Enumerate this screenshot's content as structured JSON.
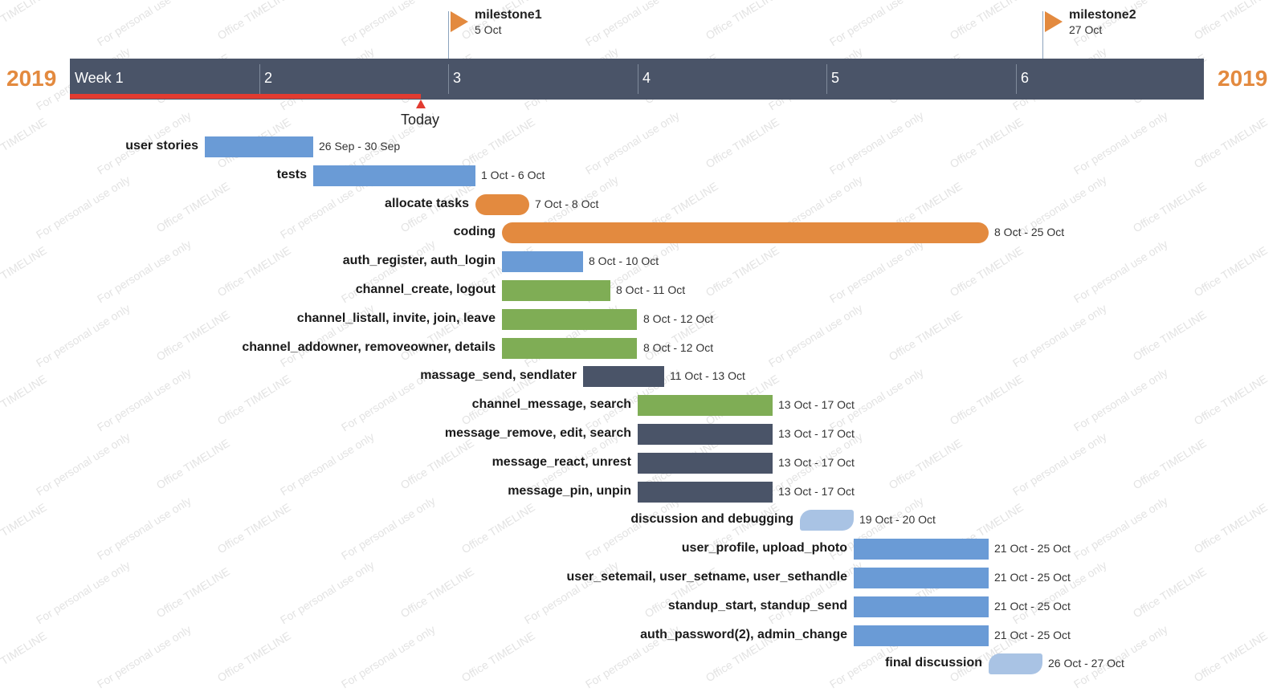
{
  "chart_data": {
    "type": "gantt",
    "year_left": "2019",
    "year_right": "2019",
    "weeks": [
      "Week 1",
      "2",
      "3",
      "4",
      "5",
      "6"
    ],
    "today_label": "Today",
    "today_date": "4 Oct",
    "timeline_start": "2019-09-21",
    "milestones": [
      {
        "name": "milestone1",
        "date_label": "5 Oct",
        "date": "2019-10-05"
      },
      {
        "name": "milestone2",
        "date_label": "27 Oct",
        "date": "2019-10-27"
      }
    ],
    "tasks": [
      {
        "name": "user stories",
        "start": "2019-09-26",
        "end": "2019-09-30",
        "dates": "26 Sep - 30 Sep",
        "color": "#6a9bd6",
        "shape": "rect"
      },
      {
        "name": "tests",
        "start": "2019-09-30",
        "end": "2019-10-06",
        "dates": "1 Oct - 6 Oct",
        "color": "#6a9bd6",
        "shape": "rect"
      },
      {
        "name": "allocate tasks",
        "start": "2019-10-06",
        "end": "2019-10-08",
        "dates": "7 Oct - 8 Oct",
        "color": "#e38a3f",
        "shape": "pill"
      },
      {
        "name": "coding",
        "start": "2019-10-07",
        "end": "2019-10-25",
        "dates": "8 Oct - 25 Oct",
        "color": "#e38a3f",
        "shape": "pill"
      },
      {
        "name": "auth_register, auth_login",
        "start": "2019-10-07",
        "end": "2019-10-10",
        "dates": "8 Oct - 10 Oct",
        "color": "#6a9bd6",
        "shape": "rect"
      },
      {
        "name": "channel_create, logout",
        "start": "2019-10-07",
        "end": "2019-10-11",
        "dates": "8 Oct - 11 Oct",
        "color": "#7fad55",
        "shape": "rect"
      },
      {
        "name": "channel_listall, invite, join, leave",
        "start": "2019-10-07",
        "end": "2019-10-12",
        "dates": "8 Oct - 12 Oct",
        "color": "#7fad55",
        "shape": "rect"
      },
      {
        "name": "channel_addowner, removeowner, details",
        "start": "2019-10-07",
        "end": "2019-10-12",
        "dates": "8 Oct - 12 Oct",
        "color": "#7fad55",
        "shape": "rect"
      },
      {
        "name": "massage_send, sendlater",
        "start": "2019-10-10",
        "end": "2019-10-13",
        "dates": "11 Oct - 13 Oct",
        "color": "#4a5468",
        "shape": "rect"
      },
      {
        "name": "channel_message, search",
        "start": "2019-10-12",
        "end": "2019-10-17",
        "dates": "13 Oct - 17 Oct",
        "color": "#7fad55",
        "shape": "rect"
      },
      {
        "name": "message_remove, edit, search",
        "start": "2019-10-12",
        "end": "2019-10-17",
        "dates": "13 Oct - 17 Oct",
        "color": "#4a5468",
        "shape": "rect"
      },
      {
        "name": "message_react, unrest",
        "start": "2019-10-12",
        "end": "2019-10-17",
        "dates": "13 Oct - 17 Oct",
        "color": "#4a5468",
        "shape": "rect"
      },
      {
        "name": "message_pin, unpin",
        "start": "2019-10-12",
        "end": "2019-10-17",
        "dates": "13 Oct - 17 Oct",
        "color": "#4a5468",
        "shape": "rect"
      },
      {
        "name": "discussion and debugging",
        "start": "2019-10-18",
        "end": "2019-10-20",
        "dates": "19 Oct - 20 Oct",
        "color": "#a9c3e4",
        "shape": "tab"
      },
      {
        "name": "user_profile, upload_photo",
        "start": "2019-10-20",
        "end": "2019-10-25",
        "dates": "21 Oct - 25 Oct",
        "color": "#6a9bd6",
        "shape": "rect"
      },
      {
        "name": "user_setemail, user_setname, user_sethandle",
        "start": "2019-10-20",
        "end": "2019-10-25",
        "dates": "21 Oct - 25 Oct",
        "color": "#6a9bd6",
        "shape": "rect"
      },
      {
        "name": "standup_start, standup_send",
        "start": "2019-10-20",
        "end": "2019-10-25",
        "dates": "21 Oct - 25 Oct",
        "color": "#6a9bd6",
        "shape": "rect"
      },
      {
        "name": "auth_password(2), admin_change",
        "start": "2019-10-20",
        "end": "2019-10-25",
        "dates": "21 Oct - 25 Oct",
        "color": "#6a9bd6",
        "shape": "rect"
      },
      {
        "name": "final discussion",
        "start": "2019-10-25",
        "end": "2019-10-27",
        "dates": "26 Oct - 27 Oct",
        "color": "#a9c3e4",
        "shape": "tab"
      }
    ]
  },
  "watermarks": [
    "Office TIMELINE",
    "For personal use only"
  ],
  "colors": {
    "timebar": "#4a5468",
    "year": "#e38a3f",
    "progress": "#e23b30",
    "milestone_flag": "#e38a3f"
  }
}
